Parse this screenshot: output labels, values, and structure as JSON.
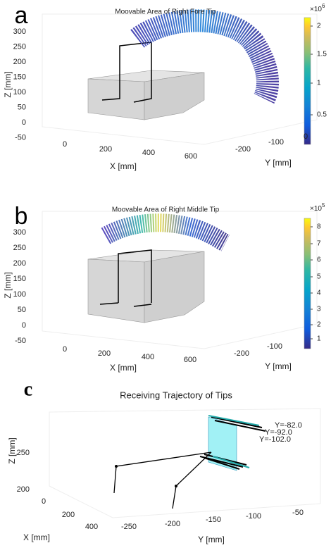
{
  "panels": [
    {
      "label": "a",
      "title": "Moovable Area of Right Fore Tip",
      "x_label": "X [mm]",
      "y_label": "Y [mm]",
      "z_label": "Z [mm]",
      "x_ticks": [
        0,
        200,
        400,
        600
      ],
      "y_ticks": [
        -200,
        -100,
        0
      ],
      "z_ticks": [
        300,
        250,
        200,
        150,
        100,
        50,
        0,
        -50
      ],
      "colorbar": {
        "ticks": [
          2,
          1.5,
          1,
          0.5
        ],
        "multiplier_base": "×10",
        "multiplier_exponent": 6
      }
    },
    {
      "label": "b",
      "title": "Moovable Area of Right Middle Tip",
      "x_label": "X [mm]",
      "y_label": "Y [mm]",
      "z_label": "Z [mm]",
      "x_ticks": [
        0,
        200,
        400,
        600
      ],
      "y_ticks": [
        -200,
        -100
      ],
      "z_ticks": [
        300,
        250,
        200,
        150,
        100,
        50,
        0,
        -50
      ],
      "colorbar": {
        "ticks": [
          8,
          7,
          6,
          5,
          4,
          3,
          2,
          1
        ],
        "multiplier_base": "×10",
        "multiplier_exponent": 5
      }
    },
    {
      "label": "c",
      "title": "Receiving Trajectory of Tips",
      "x_label": "X [mm]",
      "y_label": "Y [mm]",
      "z_label": "Z [mm]",
      "x_ticks": [
        0,
        200,
        400
      ],
      "y_ticks": [
        -250,
        -200,
        -150,
        -100,
        -50
      ],
      "z_ticks": [
        250,
        200
      ],
      "annotations": [
        "Y=-82.0",
        "Y=-92.0",
        "Y=-102.0"
      ]
    }
  ]
}
